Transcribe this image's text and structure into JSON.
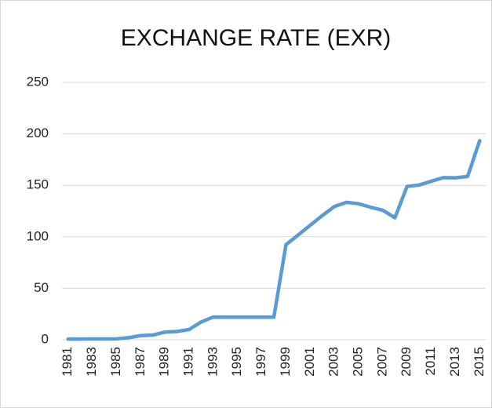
{
  "chart_data": {
    "type": "line",
    "title": "EXCHANGE RATE (EXR)",
    "categories": [
      "1981",
      null,
      "1983",
      null,
      "1985",
      null,
      "1987",
      null,
      "1989",
      null,
      "1991",
      null,
      "1993",
      null,
      "1995",
      null,
      "1997",
      null,
      "1999",
      null,
      "2001",
      null,
      "2003",
      null,
      "2005",
      null,
      "2007",
      null,
      "2009",
      null,
      "2011",
      null,
      "2013",
      null,
      "2015"
    ],
    "values": [
      0.61,
      0.67,
      0.72,
      0.77,
      0.89,
      2.02,
      4.02,
      4.54,
      7.39,
      8.04,
      9.91,
      17.3,
      22.05,
      21.9,
      21.9,
      21.9,
      21.9,
      21.9,
      92.3,
      101.7,
      111.2,
      120.6,
      129.4,
      133.5,
      132.1,
      128.7,
      125.8,
      118.5,
      148.9,
      150.3,
      153.9,
      157.5,
      157.3,
      158.6,
      193.3
    ],
    "color": "#5b9bd5",
    "ylim": [
      0,
      250
    ],
    "yticks": [
      0,
      50,
      100,
      150,
      200,
      250
    ],
    "grid": true
  }
}
